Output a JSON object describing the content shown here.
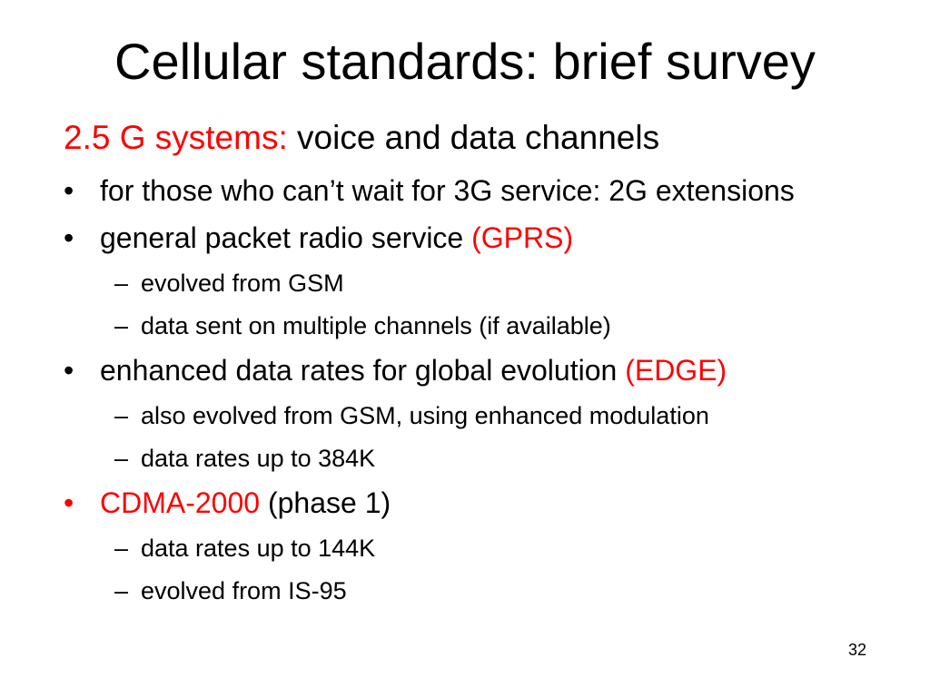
{
  "slide": {
    "title": "Cellular standards: brief survey",
    "subhead": {
      "red": "2.5 G systems:",
      "black": "voice and data channels"
    },
    "bullets": [
      {
        "text": "for those who can’t wait for 3G service: 2G extensions"
      },
      {
        "text": "general packet radio service",
        "red": "(GPRS)"
      },
      {
        "text": "evolved from GSM"
      },
      {
        "text": "data sent on multiple channels (if available)"
      },
      {
        "text": "enhanced data rates for global evolution",
        "red": "(EDGE)"
      },
      {
        "text": "also evolved from GSM, using enhanced modulation"
      },
      {
        "text": "data rates up to 384K"
      },
      {
        "red": "CDMA-2000",
        "text": "(phase 1)"
      },
      {
        "text": "data rates up to 144K"
      },
      {
        "text": "evolved from IS-95"
      }
    ],
    "bullet_marker": "•",
    "sub_marker": "–",
    "page_number": "32"
  },
  "colors": {
    "accent_red": "#ff0000",
    "text": "#000000",
    "background": "#ffffff"
  }
}
